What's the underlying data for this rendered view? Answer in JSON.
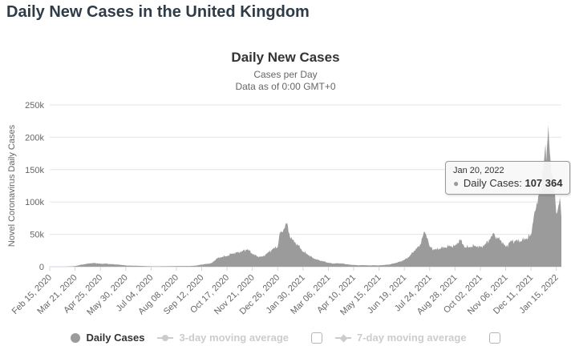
{
  "page": {
    "title": "Daily New Cases in the United Kingdom"
  },
  "chart": {
    "title": "Daily New Cases",
    "subtitle1": "Cases per Day",
    "subtitle2": "Data as of 0:00 GMT+0",
    "y_axis_title": "Novel Coronavirus Daily Cases",
    "colors": {
      "series": "#9b9b9b",
      "grid": "#e6e6e6",
      "axis_line": "#ccd6eb",
      "axis_label": "#666666",
      "disabled_legend": "#cccccc"
    },
    "tooltip": {
      "date": "Jan 20, 2022",
      "series_label": "Daily Cases:",
      "value": "107 364"
    },
    "legend": {
      "daily_cases": "Daily Cases",
      "avg3": "3-day moving average",
      "avg7": "7-day moving average"
    }
  },
  "chart_data": {
    "type": "bar",
    "title": "Daily New Cases",
    "xlabel": "",
    "ylabel": "Novel Coronavirus Daily Cases",
    "ylim": [
      0,
      250000
    ],
    "y_ticks": [
      "0",
      "50k",
      "100k",
      "150k",
      "200k",
      "250k"
    ],
    "x_tick_labels": [
      "Feb 15, 2020",
      "Mar 21, 2020",
      "Apr 25, 2020",
      "May 30, 2020",
      "Jul 04, 2020",
      "Aug 08, 2020",
      "Sep 12, 2020",
      "Oct 17, 2020",
      "Nov 21, 2020",
      "Dec 26, 2020",
      "Jan 30, 2021",
      "Mar 06, 2021",
      "Apr 10, 2021",
      "May 15, 2021",
      "Jun 19, 2021",
      "Jul 24, 2021",
      "Aug 28, 2021",
      "Oct 02, 2021",
      "Nov 06, 2021",
      "Dec 11, 2021",
      "Jan 15, 2022"
    ],
    "x_tick_interval_days": 35,
    "x_range": [
      "2020-02-15",
      "2022-01-22"
    ],
    "grid": "horizontal-only",
    "legend_position": "bottom",
    "highlight_point": {
      "date": "2022-01-20",
      "value": 107364
    },
    "samples": [
      [
        "2020-02-15",
        0
      ],
      [
        "2020-02-29",
        10
      ],
      [
        "2020-03-07",
        60
      ],
      [
        "2020-03-14",
        400
      ],
      [
        "2020-03-21",
        1000
      ],
      [
        "2020-03-28",
        2800
      ],
      [
        "2020-04-04",
        4000
      ],
      [
        "2020-04-11",
        5200
      ],
      [
        "2020-04-18",
        5600
      ],
      [
        "2020-04-25",
        4500
      ],
      [
        "2020-05-02",
        4800
      ],
      [
        "2020-05-09",
        4000
      ],
      [
        "2020-05-16",
        3500
      ],
      [
        "2020-05-23",
        2900
      ],
      [
        "2020-05-30",
        2000
      ],
      [
        "2020-06-06",
        1600
      ],
      [
        "2020-06-13",
        1500
      ],
      [
        "2020-06-20",
        1200
      ],
      [
        "2020-06-27",
        900
      ],
      [
        "2020-07-04",
        620
      ],
      [
        "2020-07-11",
        650
      ],
      [
        "2020-07-18",
        700
      ],
      [
        "2020-07-25",
        770
      ],
      [
        "2020-08-01",
        880
      ],
      [
        "2020-08-08",
        1000
      ],
      [
        "2020-08-15",
        1100
      ],
      [
        "2020-08-22",
        1050
      ],
      [
        "2020-08-29",
        1200
      ],
      [
        "2020-09-05",
        1800
      ],
      [
        "2020-09-12",
        3300
      ],
      [
        "2020-09-19",
        4300
      ],
      [
        "2020-09-26",
        5700
      ],
      [
        "2020-10-03",
        12800
      ],
      [
        "2020-10-10",
        15100
      ],
      [
        "2020-10-17",
        16200
      ],
      [
        "2020-10-24",
        20500
      ],
      [
        "2020-10-31",
        22000
      ],
      [
        "2020-11-07",
        24100
      ],
      [
        "2020-11-14",
        26900
      ],
      [
        "2020-11-21",
        19900
      ],
      [
        "2020-11-28",
        15800
      ],
      [
        "2020-12-05",
        15500
      ],
      [
        "2020-12-12",
        21500
      ],
      [
        "2020-12-19",
        27100
      ],
      [
        "2020-12-26",
        30500
      ],
      [
        "2020-12-29",
        53100
      ],
      [
        "2021-01-01",
        53300
      ],
      [
        "2021-01-04",
        58800
      ],
      [
        "2021-01-08",
        68100
      ],
      [
        "2021-01-12",
        45500
      ],
      [
        "2021-01-16",
        41300
      ],
      [
        "2021-01-23",
        33600
      ],
      [
        "2021-01-30",
        23300
      ],
      [
        "2021-02-06",
        18300
      ],
      [
        "2021-02-13",
        13300
      ],
      [
        "2021-02-20",
        10400
      ],
      [
        "2021-02-27",
        8500
      ],
      [
        "2021-03-06",
        6000
      ],
      [
        "2021-03-13",
        4800
      ],
      [
        "2021-03-20",
        5300
      ],
      [
        "2021-03-27",
        4700
      ],
      [
        "2021-04-03",
        3400
      ],
      [
        "2021-04-10",
        2600
      ],
      [
        "2021-04-17",
        2200
      ],
      [
        "2021-04-24",
        2400
      ],
      [
        "2021-05-01",
        2000
      ],
      [
        "2021-05-08",
        2300
      ],
      [
        "2021-05-15",
        2000
      ],
      [
        "2021-05-22",
        2700
      ],
      [
        "2021-05-29",
        3200
      ],
      [
        "2021-06-05",
        5300
      ],
      [
        "2021-06-12",
        7500
      ],
      [
        "2021-06-19",
        10600
      ],
      [
        "2021-06-26",
        15800
      ],
      [
        "2021-07-03",
        24900
      ],
      [
        "2021-07-10",
        31800
      ],
      [
        "2021-07-15",
        48600
      ],
      [
        "2021-07-17",
        54200
      ],
      [
        "2021-07-21",
        44100
      ],
      [
        "2021-07-24",
        31100
      ],
      [
        "2021-07-31",
        26100
      ],
      [
        "2021-08-07",
        28000
      ],
      [
        "2021-08-14",
        29600
      ],
      [
        "2021-08-21",
        32100
      ],
      [
        "2021-08-28",
        32400
      ],
      [
        "2021-09-04",
        42000
      ],
      [
        "2021-09-11",
        29600
      ],
      [
        "2021-09-18",
        30100
      ],
      [
        "2021-09-25",
        32400
      ],
      [
        "2021-10-02",
        30300
      ],
      [
        "2021-10-09",
        35000
      ],
      [
        "2021-10-16",
        44000
      ],
      [
        "2021-10-21",
        52000
      ],
      [
        "2021-10-23",
        44700
      ],
      [
        "2021-10-30",
        41300
      ],
      [
        "2021-11-06",
        30600
      ],
      [
        "2021-11-13",
        40000
      ],
      [
        "2021-11-20",
        40000
      ],
      [
        "2021-11-27",
        39600
      ],
      [
        "2021-12-04",
        42800
      ],
      [
        "2021-12-11",
        48600
      ],
      [
        "2021-12-15",
        78600
      ],
      [
        "2021-12-18",
        90400
      ],
      [
        "2021-12-23",
        119700
      ],
      [
        "2021-12-25",
        113600
      ],
      [
        "2021-12-31",
        189800
      ],
      [
        "2022-01-01",
        162600
      ],
      [
        "2022-01-04",
        218700
      ],
      [
        "2022-01-05",
        194700
      ],
      [
        "2022-01-08",
        146100
      ],
      [
        "2022-01-12",
        129600
      ],
      [
        "2022-01-15",
        81700
      ],
      [
        "2022-01-18",
        94400
      ],
      [
        "2022-01-20",
        107364
      ],
      [
        "2022-01-22",
        76800
      ]
    ]
  }
}
